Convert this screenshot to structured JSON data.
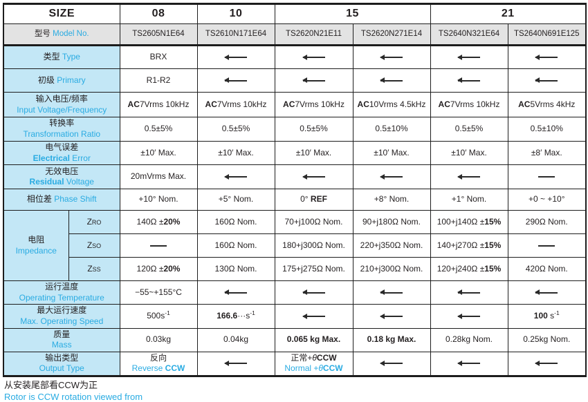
{
  "page": {
    "colors": {
      "accent_cyan": "#29abe2",
      "label_bg": "#c3e7f6",
      "model_row_bg": "#e3e3e3",
      "border": "#1c1c1c"
    },
    "size_header": {
      "label": "SIZE",
      "groups": [
        {
          "label": "08",
          "span": 1
        },
        {
          "label": "10",
          "span": 1
        },
        {
          "label": "15",
          "span": 2
        },
        {
          "label": "21",
          "span": 2
        }
      ]
    },
    "model_row": {
      "label_zh": "型号",
      "label_en": "Model No.",
      "values": [
        "TS2605N1E64",
        "TS2610N171E64",
        "TS2620N21E11",
        "TS2620N271E14",
        "TS2640N321E64",
        "TS2640N691E125"
      ]
    },
    "rows": [
      {
        "name": "type",
        "label": {
          "zh": "类型",
          "en": [
            {
              "t": "Type"
            }
          ],
          "inline": true
        },
        "cells": [
          "BRX",
          {
            "a": 1
          },
          {
            "a": 1
          },
          {
            "a": 1
          },
          {
            "a": 1
          },
          {
            "a": 1
          }
        ]
      },
      {
        "name": "primary",
        "label": {
          "zh": "初级",
          "en": [
            {
              "t": "Primary"
            }
          ],
          "inline": true
        },
        "cells": [
          "R1-R2",
          {
            "a": 1
          },
          {
            "a": 1
          },
          {
            "a": 1
          },
          {
            "a": 1
          },
          {
            "a": 1
          }
        ]
      },
      {
        "name": "input_vf",
        "label": {
          "zh": "输入电压/频率",
          "en": [
            {
              "t": "Input Voltage/Frequency"
            }
          ]
        },
        "cells": [
          {
            "s": [
              {
                "t": "AC",
                "b": 1
              },
              {
                "t": "7Vrms 10kHz"
              }
            ]
          },
          {
            "s": [
              {
                "t": "AC",
                "b": 1
              },
              {
                "t": "7Vrms 10kHz"
              }
            ]
          },
          {
            "s": [
              {
                "t": "AC",
                "b": 1
              },
              {
                "t": "7Vrms 10kHz"
              }
            ]
          },
          {
            "s": [
              {
                "t": "AC",
                "b": 1
              },
              {
                "t": "10Vrms 4.5kHz"
              }
            ]
          },
          {
            "s": [
              {
                "t": "AC",
                "b": 1
              },
              {
                "t": "7Vrms 10kHz"
              }
            ]
          },
          {
            "s": [
              {
                "t": "AC",
                "b": 1
              },
              {
                "t": "5Vrms 4kHz"
              }
            ]
          }
        ]
      },
      {
        "name": "ratio",
        "label": {
          "zh": "转换率",
          "en": [
            {
              "t": "Transformation Ratio"
            }
          ]
        },
        "cells": [
          "0.5±5%",
          "0.5±5%",
          "0.5±5%",
          "0.5±10%",
          "0.5±5%",
          "0.5±10%"
        ]
      },
      {
        "name": "electrical_error",
        "label": {
          "zh": "电气误差",
          "en": [
            {
              "t": "Electrical",
              "b": 1
            },
            {
              "t": " Error"
            }
          ]
        },
        "cells": [
          "±10′ Max.",
          "±10′ Max.",
          "±10′ Max.",
          "±10′ Max.",
          "±10′ Max.",
          "±8′ Max."
        ]
      },
      {
        "name": "residual_voltage",
        "label": {
          "zh": "无效电压",
          "en": [
            {
              "t": "Residual",
              "b": 1
            },
            {
              "t": " Voltage"
            }
          ]
        },
        "cells": [
          "20mVrms Max.",
          {
            "a": 1
          },
          {
            "a": 1
          },
          {
            "a": 1
          },
          {
            "a": 1
          },
          {
            "d": 1
          }
        ]
      },
      {
        "name": "phase_shift",
        "label": {
          "zh": "相位差",
          "en": [
            {
              "t": "Phase Shift"
            }
          ],
          "inline": true
        },
        "cells": [
          "+10° Nom.",
          "+5° Nom.",
          {
            "s": [
              {
                "t": "0° "
              },
              {
                "t": "REF",
                "b": 1
              }
            ]
          },
          "+8° Nom.",
          "+1° Nom.",
          "+0 ~ +10°"
        ]
      },
      {
        "name": "impedance_zro",
        "group": {
          "zh": "电阻",
          "en": [
            {
              "t": "Impedance"
            }
          ],
          "rowspan": 3
        },
        "sub": [
          {
            "t": "Z"
          },
          {
            "t": "RO",
            "sm": 1
          }
        ],
        "cells": [
          {
            "s": [
              {
                "t": "140Ω ±"
              },
              {
                "t": "20%",
                "b": 1
              }
            ]
          },
          "160Ω Nom.",
          "70+j100Ω Nom.",
          "90+j180Ω Nom.",
          {
            "s": [
              {
                "t": "100+j140Ω ±"
              },
              {
                "t": "15%",
                "b": 1
              }
            ]
          },
          "290Ω Nom."
        ]
      },
      {
        "name": "impedance_zso",
        "sub": [
          {
            "t": "Z"
          },
          {
            "t": "SO",
            "sm": 1
          }
        ],
        "cells": [
          {
            "d": 1
          },
          "160Ω Nom.",
          "180+j300Ω Nom.",
          "220+j350Ω Nom.",
          {
            "s": [
              {
                "t": "140+j270Ω ±"
              },
              {
                "t": "15%",
                "b": 1
              }
            ]
          },
          {
            "d": 1
          }
        ]
      },
      {
        "name": "impedance_zss",
        "sub": [
          {
            "t": "Z"
          },
          {
            "t": "SS",
            "sm": 1
          }
        ],
        "cells": [
          {
            "s": [
              {
                "t": "120Ω ±"
              },
              {
                "t": "20%",
                "b": 1
              }
            ]
          },
          "130Ω Nom.",
          "175+j275Ω Nom.",
          "210+j300Ω Nom.",
          {
            "s": [
              {
                "t": "120+j240Ω ±"
              },
              {
                "t": "15%",
                "b": 1
              }
            ]
          },
          "420Ω Nom."
        ]
      },
      {
        "name": "operating_temperature",
        "label": {
          "zh": "运行温度",
          "en": [
            {
              "t": "Operating Temperature"
            }
          ]
        },
        "cells": [
          "−55~+155°C",
          {
            "a": 1
          },
          {
            "a": 1
          },
          {
            "a": 1
          },
          {
            "a": 1
          },
          {
            "a": 1
          }
        ]
      },
      {
        "name": "max_operating_speed",
        "label": {
          "zh": "最大运行速度",
          "en": [
            {
              "t": "Max. Operating Speed"
            }
          ]
        },
        "cells": [
          {
            "s": [
              {
                "t": "500s"
              },
              {
                "t": "-1",
                "sup": 1
              }
            ]
          },
          {
            "s": [
              {
                "t": "166.6",
                "b": 1
              },
              {
                "t": "···s"
              },
              {
                "t": "-1",
                "sup": 1
              }
            ]
          },
          {
            "a": 1
          },
          {
            "a": 1
          },
          {
            "a": 1
          },
          {
            "s": [
              {
                "t": "100",
                "b": 1
              },
              {
                "t": " s"
              },
              {
                "t": "-1",
                "sup": 1
              }
            ]
          }
        ]
      },
      {
        "name": "mass",
        "label": {
          "zh": "质量",
          "en": [
            {
              "t": "Mass"
            }
          ]
        },
        "cells": [
          "0.03kg",
          "0.04kg",
          {
            "s": [
              {
                "t": "0.065 kg Max.",
                "b": 1
              }
            ]
          },
          {
            "s": [
              {
                "t": "0.18 kg Max.",
                "b": 1
              }
            ]
          },
          "0.28kg Nom.",
          "0.25kg Nom."
        ]
      },
      {
        "name": "output_type",
        "label": {
          "zh": "输出类型",
          "en": [
            {
              "t": "Output Type"
            }
          ]
        },
        "cells": [
          {
            "s": [
              {
                "t": "反向"
              },
              {
                "br": 1
              },
              {
                "t": "Reverse ",
                "c": 1
              },
              {
                "t": "CCW",
                "c": 1,
                "b": 1
              }
            ]
          },
          {
            "a": 1
          },
          {
            "s": [
              {
                "t": "正常+"
              },
              {
                "t": "θ",
                "i": 1
              },
              {
                "t": "CCW",
                "b": 1
              },
              {
                "br": 1
              },
              {
                "t": "Normal +",
                "c": 1
              },
              {
                "t": "θ",
                "c": 1,
                "i": 1
              },
              {
                "t": "CCW",
                "c": 1,
                "b": 1
              }
            ]
          },
          {
            "a": 1
          },
          {
            "a": 1
          },
          {
            "a": 1
          }
        ]
      }
    ],
    "footer": {
      "line_zh": "从安装尾部看CCW为正",
      "line_en": "Rotor is CCW rotation viewed from"
    }
  }
}
